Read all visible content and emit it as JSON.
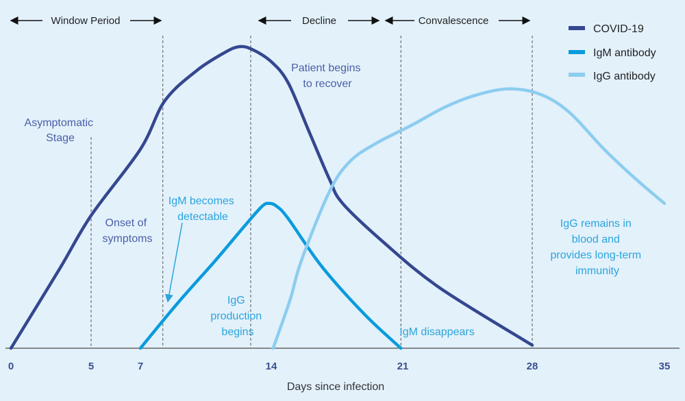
{
  "chart_data": {
    "type": "line",
    "title": "",
    "xlabel": "Days since infection",
    "ylabel": "",
    "x_ticks": [
      0,
      5,
      7,
      14,
      21,
      28,
      35
    ],
    "xlim": [
      0,
      35
    ],
    "ylim": [
      0,
      100
    ],
    "grid": false,
    "legend_placement": "top-right",
    "series": [
      {
        "name": "COVID-19",
        "color": "#34478f",
        "points": [
          [
            0,
            0
          ],
          [
            3,
            26
          ],
          [
            5,
            44
          ],
          [
            7,
            66
          ],
          [
            8.3,
            82
          ],
          [
            10,
            92
          ],
          [
            11.5,
            98
          ],
          [
            12.3,
            100
          ],
          [
            13,
            99
          ],
          [
            14,
            95
          ],
          [
            14.9,
            88
          ],
          [
            16,
            72
          ],
          [
            17.1,
            56
          ],
          [
            17.8,
            48
          ],
          [
            20,
            35
          ],
          [
            23,
            20
          ],
          [
            28,
            1
          ]
        ]
      },
      {
        "name": "IgM antibody",
        "color": "#0a9bdc",
        "points": [
          [
            7,
            0
          ],
          [
            9,
            15
          ],
          [
            11,
            29
          ],
          [
            12.5,
            40
          ],
          [
            13.5,
            47
          ],
          [
            13.9,
            48
          ],
          [
            14.3,
            47
          ],
          [
            14.9,
            43
          ],
          [
            16.7,
            27
          ],
          [
            19,
            11
          ],
          [
            20.9,
            0
          ]
        ]
      },
      {
        "name": "IgG antibody",
        "color": "#8ccdf0",
        "points": [
          [
            14.1,
            0
          ],
          [
            15,
            16
          ],
          [
            15.6,
            29
          ],
          [
            17.1,
            52
          ],
          [
            18.2,
            62
          ],
          [
            19.6,
            68
          ],
          [
            21.5,
            74
          ],
          [
            23.3,
            80
          ],
          [
            25,
            84
          ],
          [
            26.8,
            86
          ],
          [
            28.5,
            84
          ],
          [
            30,
            78
          ],
          [
            31.8,
            66
          ],
          [
            33.5,
            56
          ],
          [
            35,
            48
          ]
        ]
      }
    ],
    "phase_lines_days": [
      5,
      8.2,
      12.9,
      20.9,
      28
    ],
    "phases": [
      {
        "label": "Window Period"
      },
      {
        "label": "Decline"
      },
      {
        "label": "Convalescence"
      }
    ],
    "annotations": {
      "asymptomatic": [
        "Asymptomatic",
        "Stage"
      ],
      "onset": [
        "Onset of",
        "symptoms"
      ],
      "recover": [
        "Patient begins",
        "to recover"
      ],
      "igm_detectable": [
        "IgM becomes",
        "detectable"
      ],
      "igg_production": [
        "IgG",
        "production",
        "begins"
      ],
      "igm_disappears": [
        "IgM disappears"
      ],
      "igg_remains": [
        "IgG remains in",
        "blood and",
        "provides long-term",
        "immunity"
      ]
    },
    "background": "#e3f1fb"
  }
}
